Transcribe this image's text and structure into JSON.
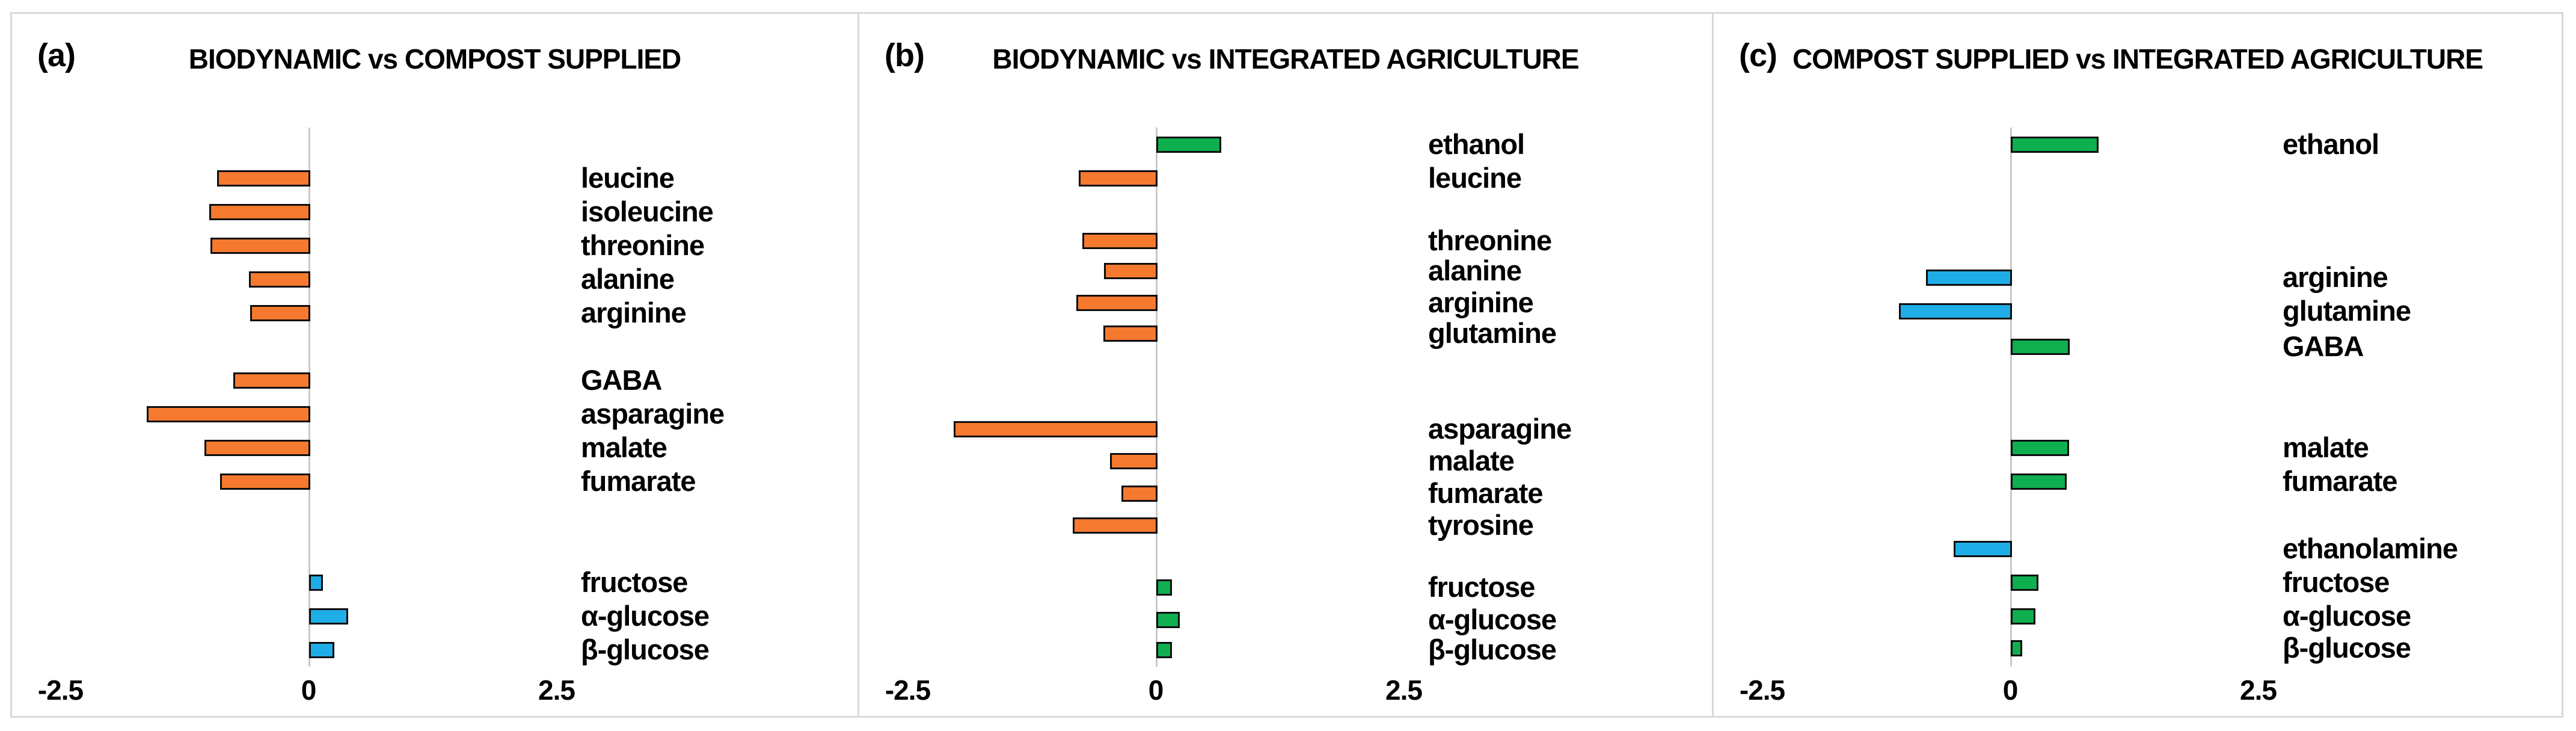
{
  "figure": {
    "description": "Three-panel horizontal diverging bar chart comparing metabolite levels between farming systems",
    "x_axis_ticks": [
      "-2.5",
      "0",
      "2.5"
    ]
  },
  "colors": {
    "orange": "#f5792e",
    "blue": "#1fade8",
    "green": "#0fae4e"
  },
  "chart_data": [
    {
      "type": "bar",
      "orientation": "horizontal",
      "panel": "a",
      "letter": "(a)",
      "title": "BIODYNAMIC vs COMPOST SUPPLIED",
      "xlim": [
        -2.5,
        2.5
      ],
      "grid": false,
      "x_ticks": [
        {
          "label": "-2.5",
          "value": -2.5
        },
        {
          "label": "0",
          "value": 0
        },
        {
          "label": "2.5",
          "value": 2.5
        }
      ],
      "bars": [
        {
          "label": "leucine",
          "value": -0.9,
          "color": "orange",
          "row": 1
        },
        {
          "label": "isoleucine",
          "value": -0.98,
          "color": "orange",
          "row": 2
        },
        {
          "label": "threonine",
          "value": -0.97,
          "color": "orange",
          "row": 3
        },
        {
          "label": "alanine",
          "value": -0.58,
          "color": "orange",
          "row": 4
        },
        {
          "label": "arginine",
          "value": -0.57,
          "color": "orange",
          "row": 5
        },
        {
          "label": "GABA",
          "value": -0.74,
          "color": "orange",
          "row": 7
        },
        {
          "label": "asparagine",
          "value": -1.61,
          "color": "orange",
          "row": 8
        },
        {
          "label": "malate",
          "value": -1.03,
          "color": "orange",
          "row": 9
        },
        {
          "label": "fumarate",
          "value": -0.87,
          "color": "orange",
          "row": 10
        },
        {
          "label": "fructose",
          "value": 0.1,
          "color": "blue",
          "row": 13
        },
        {
          "label": "α-glucose",
          "value": 0.36,
          "color": "blue",
          "row": 14
        },
        {
          "label": "β-glucose",
          "value": 0.22,
          "color": "blue",
          "row": 15
        }
      ]
    },
    {
      "type": "bar",
      "orientation": "horizontal",
      "panel": "b",
      "letter": "(b)",
      "title": "BIODYNAMIC vs INTEGRATED AGRICULTURE",
      "xlim": [
        -2.5,
        2.5
      ],
      "grid": false,
      "x_ticks": [
        {
          "label": "-2.5",
          "value": -2.5
        },
        {
          "label": "0",
          "value": 0
        },
        {
          "label": "2.5",
          "value": 2.5
        }
      ],
      "bars": [
        {
          "label": "ethanol",
          "value": 0.62,
          "color": "green",
          "row": 0
        },
        {
          "label": "leucine",
          "value": -0.76,
          "color": "orange",
          "row": 1
        },
        {
          "label": "threonine",
          "value": -0.72,
          "color": "orange",
          "row": 2.85
        },
        {
          "label": "alanine",
          "value": -0.5,
          "color": "orange",
          "row": 3.75
        },
        {
          "label": "arginine",
          "value": -0.78,
          "color": "orange",
          "row": 4.7
        },
        {
          "label": "glutamine",
          "value": -0.51,
          "color": "orange",
          "row": 5.6
        },
        {
          "label": "asparagine",
          "value": -2.02,
          "color": "orange",
          "row": 8.45
        },
        {
          "label": "malate",
          "value": -0.44,
          "color": "orange",
          "row": 9.4
        },
        {
          "label": "fumarate",
          "value": -0.33,
          "color": "orange",
          "row": 10.35
        },
        {
          "label": "tyrosine",
          "value": -0.82,
          "color": "orange",
          "row": 11.3
        },
        {
          "label": "fructose",
          "value": 0.12,
          "color": "green",
          "row": 13.15
        },
        {
          "label": "α-glucose",
          "value": 0.2,
          "color": "green",
          "row": 14.1
        },
        {
          "label": "β-glucose",
          "value": 0.12,
          "color": "green",
          "row": 15
        }
      ]
    },
    {
      "type": "bar",
      "orientation": "horizontal",
      "panel": "c",
      "letter": "(c)",
      "title": "COMPOST SUPPLIED vs INTEGRATED AGRICULTURE",
      "xlim": [
        -2.5,
        2.5
      ],
      "grid": false,
      "x_ticks": [
        {
          "label": "-2.5",
          "value": -2.5
        },
        {
          "label": "0",
          "value": 0
        },
        {
          "label": "2.5",
          "value": 2.5
        }
      ],
      "bars": [
        {
          "label": "ethanol",
          "value": 0.85,
          "color": "green",
          "row": 0
        },
        {
          "label": "arginine",
          "value": -0.83,
          "color": "blue",
          "row": 3.95
        },
        {
          "label": "glutamine",
          "value": -1.1,
          "color": "blue",
          "row": 4.95
        },
        {
          "label": "GABA",
          "value": 0.56,
          "color": "green",
          "row": 6
        },
        {
          "label": "malate",
          "value": 0.55,
          "color": "green",
          "row": 9
        },
        {
          "label": "fumarate",
          "value": 0.53,
          "color": "green",
          "row": 10
        },
        {
          "label": "ethanolamine",
          "value": -0.55,
          "color": "blue",
          "row": 12
        },
        {
          "label": "fructose",
          "value": 0.24,
          "color": "green",
          "row": 13
        },
        {
          "label": "α-glucose",
          "value": 0.21,
          "color": "green",
          "row": 14
        },
        {
          "label": "β-glucose",
          "value": 0.08,
          "color": "green",
          "row": 14.95
        }
      ]
    }
  ]
}
